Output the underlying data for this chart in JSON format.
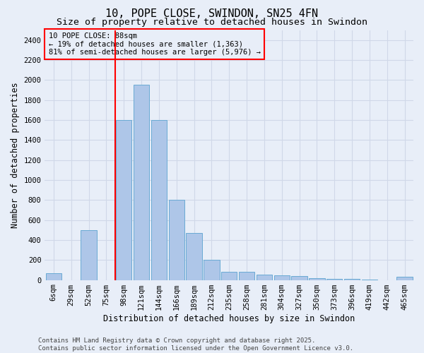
{
  "title": "10, POPE CLOSE, SWINDON, SN25 4FN",
  "subtitle": "Size of property relative to detached houses in Swindon",
  "xlabel": "Distribution of detached houses by size in Swindon",
  "ylabel": "Number of detached properties",
  "categories": [
    "6sqm",
    "29sqm",
    "52sqm",
    "75sqm",
    "98sqm",
    "121sqm",
    "144sqm",
    "166sqm",
    "189sqm",
    "212sqm",
    "235sqm",
    "258sqm",
    "281sqm",
    "304sqm",
    "327sqm",
    "350sqm",
    "373sqm",
    "396sqm",
    "419sqm",
    "442sqm",
    "465sqm"
  ],
  "values": [
    65,
    0,
    500,
    0,
    1600,
    1950,
    1600,
    800,
    470,
    200,
    80,
    80,
    55,
    45,
    40,
    20,
    10,
    10,
    5,
    0,
    30
  ],
  "bar_color": "#aec6e8",
  "bar_edge_color": "#6aaad4",
  "grid_color": "#d0d8e8",
  "background_color": "#e8eef8",
  "vline_x": 4,
  "vline_color": "red",
  "annotation_text": "10 POPE CLOSE: 88sqm\n← 19% of detached houses are smaller (1,363)\n81% of semi-detached houses are larger (5,976) →",
  "annotation_box_color": "red",
  "ylim": [
    0,
    2500
  ],
  "yticks": [
    0,
    200,
    400,
    600,
    800,
    1000,
    1200,
    1400,
    1600,
    1800,
    2000,
    2200,
    2400
  ],
  "footer_text": "Contains HM Land Registry data © Crown copyright and database right 2025.\nContains public sector information licensed under the Open Government Licence v3.0.",
  "title_fontsize": 11,
  "subtitle_fontsize": 9.5,
  "axis_label_fontsize": 8.5,
  "tick_fontsize": 7.5,
  "annotation_fontsize": 7.5,
  "footer_fontsize": 6.5
}
